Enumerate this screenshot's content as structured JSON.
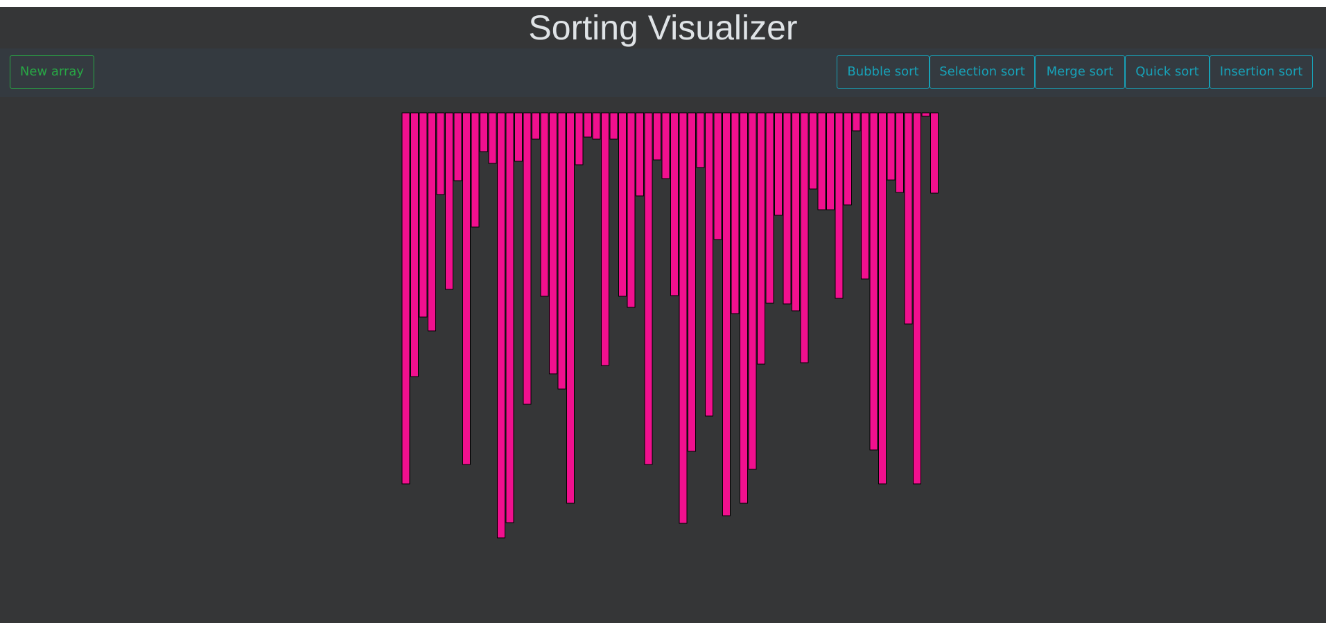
{
  "app": {
    "title": "Sorting Visualizer"
  },
  "toolbar": {
    "new_array_label": "New array",
    "algorithms": [
      "Bubble sort",
      "Selection sort",
      "Merge sort",
      "Quick sort",
      "Insertion sort"
    ]
  },
  "colors": {
    "background": "#353637",
    "toolbar_background": "#343a40",
    "bar_fill": "#f1108e",
    "bar_stroke": "#000000",
    "new_array_accent": "#28a745",
    "algorithm_accent": "#17a2b8"
  },
  "array": {
    "values": [
      536,
      381,
      295,
      315,
      118,
      255,
      98,
      508,
      165,
      56,
      73,
      614,
      592,
      70,
      421,
      38,
      265,
      377,
      399,
      564,
      75,
      35,
      38,
      365,
      38,
      265,
      281,
      120,
      508,
      68,
      95,
      264,
      593,
      489,
      79,
      438,
      183,
      582,
      290,
      564,
      515,
      363,
      275,
      148,
      276,
      286,
      361,
      110,
      140,
      140,
      268,
      133,
      26,
      240,
      487,
      536,
      97,
      115,
      305,
      536,
      5,
      116
    ]
  }
}
